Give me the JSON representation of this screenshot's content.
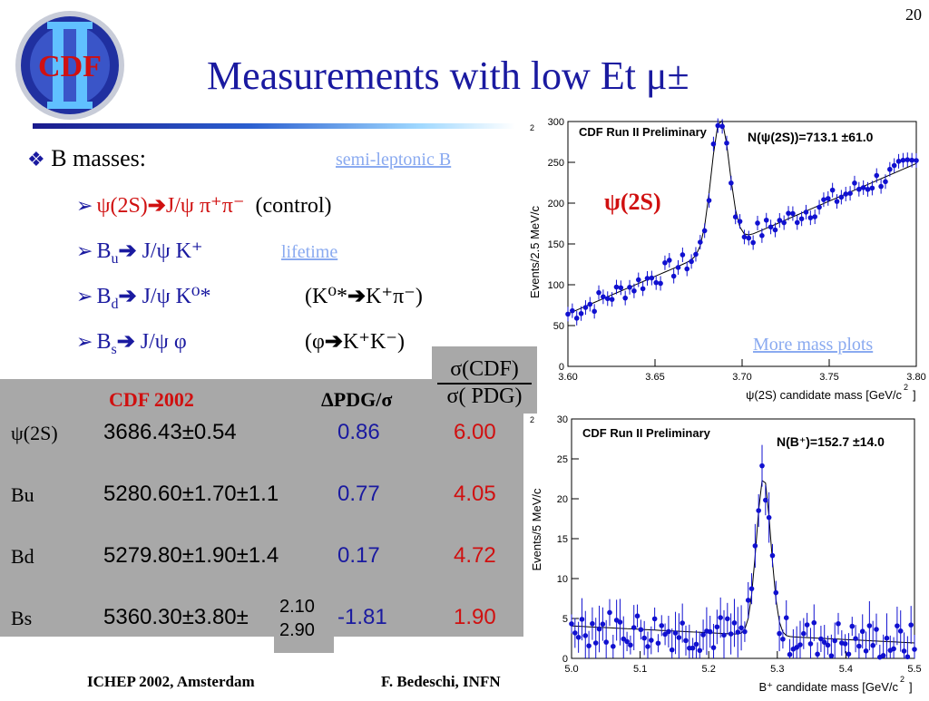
{
  "slide_number": "20",
  "logo_text": "CDF",
  "title": "Measurements with low Et μ±",
  "bullets": {
    "main": "B masses:",
    "link_semileptonic": "semi-leptonic B",
    "items": [
      {
        "lhs": "ψ(2S)",
        "rhs": "J/ψ π⁺π⁻",
        "note": "(control)"
      },
      {
        "lhs": "B",
        "lhs_sub": "u",
        "rhs": "J/ψ K⁺",
        "link": "lifetime"
      },
      {
        "lhs": "B",
        "lhs_sub": "d",
        "rhs": "J/ψ K⁰*",
        "note_left": "(K⁰*",
        "note_right": "K⁺π⁻)"
      },
      {
        "lhs": "B",
        "lhs_sub": "s",
        "rhs": "J/ψ φ",
        "note_left": "(φ",
        "note_right": "K⁺K⁻)"
      }
    ]
  },
  "table": {
    "headers": {
      "cdf": "CDF 2002",
      "dpdg": "ΔPDG/σ",
      "ratio_num": "σ(CDF)",
      "ratio_den": "σ( PDG)"
    },
    "rows": [
      {
        "name": "ψ(2S)",
        "mass": "3686.43±0.54",
        "dpdg": "0.86",
        "ratio": "6.00"
      },
      {
        "name": "Bu",
        "mass": "5280.60±1.70±1.1",
        "dpdg": "0.77",
        "ratio": "4.05"
      },
      {
        "name": "Bd",
        "mass": "5279.80±1.90±1.4",
        "dpdg": "0.17",
        "ratio": "4.72"
      },
      {
        "name": "Bs",
        "mass": "5360.30±3.80±",
        "mass_up": "2.10",
        "mass_down": "2.90",
        "dpdg": "-1.81",
        "ratio": "1.90"
      }
    ]
  },
  "plot_top": {
    "label": "CDF Run II Preliminary",
    "ncount": "N(ψ(2S))=713.1 ±61.0",
    "peak_label": "ψ(2S)",
    "link": "More mass plots",
    "ylabel": "Events/2.5 MeV/c",
    "ylabel_sup": "2",
    "xlabel": "ψ(2S) candidate mass [GeV/c",
    "xlabel_sup": "2",
    "xlabel_end": "]",
    "xticks": [
      "3.60",
      "3.65",
      "3.70",
      "3.75",
      "3.80"
    ],
    "yticks": [
      "0",
      "50",
      "100",
      "150",
      "200",
      "250",
      "300"
    ]
  },
  "plot_bottom": {
    "label": "CDF Run II Preliminary",
    "ncount": "N(B⁺)=152.7 ±14.0",
    "ylabel": "Events/5 MeV/c",
    "ylabel_sup": "2",
    "xlabel": "B⁺ candidate mass [GeV/c",
    "xlabel_sup": "2",
    "xlabel_end": "]",
    "xticks": [
      "5.0",
      "5.1",
      "5.2",
      "5.3",
      "5.4",
      "5.5"
    ],
    "yticks": [
      "0",
      "5",
      "10",
      "15",
      "20",
      "25",
      "30"
    ]
  },
  "footer": {
    "left": "ICHEP 2002, Amsterdam",
    "right": "F. Bedeschi, INFN"
  },
  "colors": {
    "title": "#1a1aa0",
    "accent_red": "#d01010",
    "marker_blue": "#1010d0",
    "table_gray": "#a8a8a8",
    "link": "#8aaaf0"
  }
}
